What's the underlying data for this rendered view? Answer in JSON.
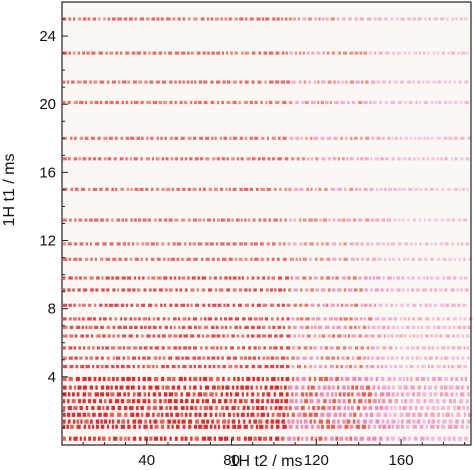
{
  "chart_data": {
    "type": "heatmap",
    "title": "",
    "xlabel": "1H t2 / ms",
    "ylabel": "1H t1 / ms",
    "xlim": [
      0,
      193
    ],
    "ylim": [
      0,
      26
    ],
    "x_ticks": [
      40,
      80,
      120,
      160
    ],
    "y_ticks": [
      4,
      8,
      12,
      16,
      20,
      24
    ],
    "grid": false,
    "rows_t1_ms": [
      25.0,
      23.0,
      21.3,
      20.1,
      18.0,
      16.8,
      15.0,
      13.2,
      11.8,
      10.9,
      9.8,
      9.1,
      8.2,
      7.4,
      6.9,
      6.4,
      5.7,
      5.1,
      4.6,
      3.9,
      3.4,
      3.0,
      2.6,
      2.2,
      1.8,
      1.4,
      1.1,
      0.4
    ],
    "color_scale": [
      "#d8232a",
      "#e2584f",
      "#ee86b3",
      "#f2a2d6"
    ],
    "background_color": "#fbf7f3"
  }
}
